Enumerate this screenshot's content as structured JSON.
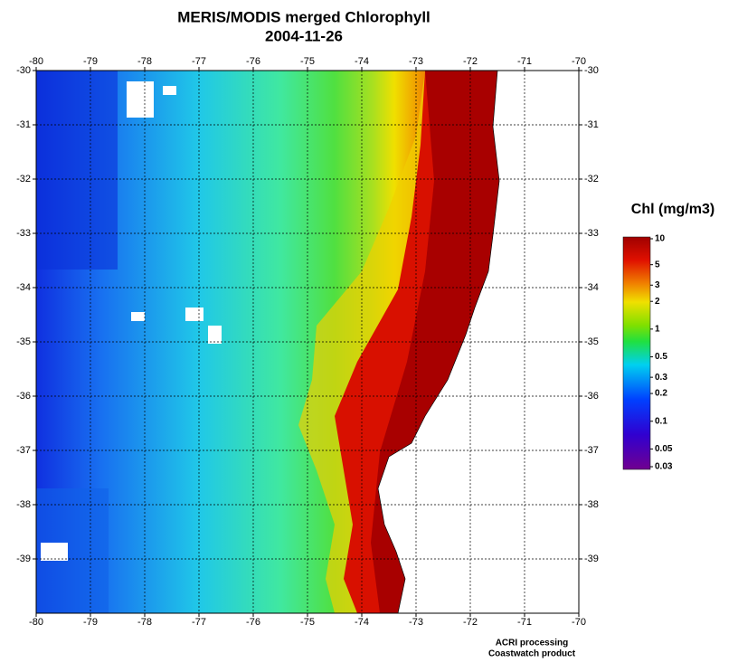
{
  "map": {
    "title": "MERIS/MODIS merged Chlorophyll",
    "date": "2004-11-26",
    "xlim": [
      -80,
      -70
    ],
    "ylim": [
      -40,
      -30
    ],
    "xticks": [
      -80,
      -79,
      -78,
      -77,
      -76,
      -75,
      -74,
      -73,
      -72,
      -71,
      -70
    ],
    "yticks": [
      -30,
      -31,
      -32,
      -33,
      -34,
      -35,
      -36,
      -37,
      -38,
      -39
    ],
    "grid": true,
    "colorbar": {
      "title": "Chl (mg/m3)",
      "log_scale": true,
      "clim": [
        0.03,
        10
      ],
      "ticks": [
        10,
        5,
        3,
        2,
        1,
        0.5,
        0.3,
        0.2,
        0.1,
        0.05,
        0.03
      ]
    },
    "credits": [
      "ACRI processing",
      "Coastwatch product"
    ]
  }
}
